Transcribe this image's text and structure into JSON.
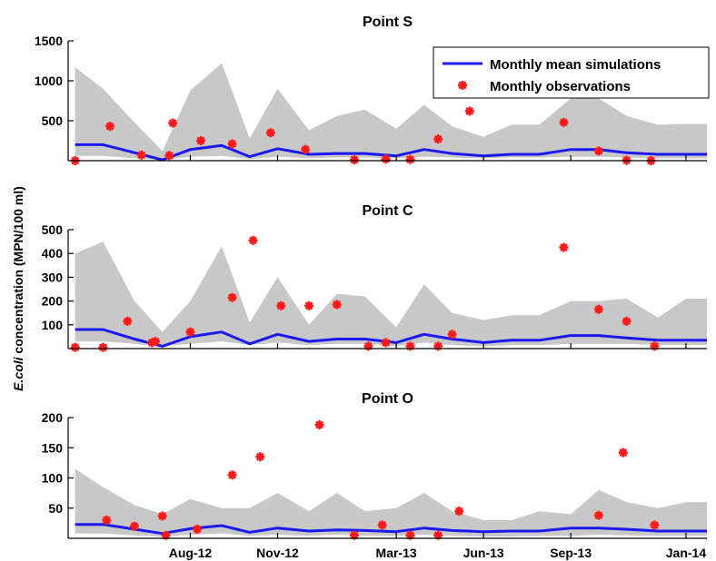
{
  "ylabel_italic": "E.coli",
  "ylabel_rest": " concentration (MPN/100 ml)",
  "legend": {
    "sim_label": "Monthly mean simulations",
    "obs_label": "Monthly observations"
  },
  "colors": {
    "band": "#c8c8c8",
    "line": "#1a1aee",
    "marker": "#ff1a1a"
  },
  "chart_data": [
    {
      "type": "line",
      "title": "Point S",
      "x_ticks": [
        {
          "x": 2012.58,
          "label": "Aug-12"
        },
        {
          "x": 2012.83,
          "label": "Nov-12"
        },
        {
          "x": 2013.17,
          "label": "Mar-13"
        },
        {
          "x": 2013.42,
          "label": "Jun-13"
        },
        {
          "x": 2013.67,
          "label": "Sep-13"
        },
        {
          "x": 2014.0,
          "label": "Jan-14"
        }
      ],
      "xlim": [
        2012.23,
        2014.06
      ],
      "ylim": [
        0,
        1500
      ],
      "y_ticks": [
        500,
        1000,
        1500
      ],
      "band": {
        "x": [
          2012.25,
          2012.33,
          2012.42,
          2012.5,
          2012.58,
          2012.67,
          2012.75,
          2012.83,
          2012.92,
          2013.0,
          2013.08,
          2013.17,
          2013.25,
          2013.33,
          2013.42,
          2013.5,
          2013.58,
          2013.67,
          2013.75,
          2013.83,
          2013.92,
          2014.0,
          2014.08
        ],
        "upper": [
          1170,
          900,
          480,
          120,
          880,
          1220,
          280,
          900,
          380,
          560,
          640,
          400,
          700,
          430,
          300,
          450,
          450,
          780,
          780,
          560,
          450,
          460,
          460
        ],
        "lower": [
          60,
          60,
          30,
          10,
          50,
          60,
          20,
          50,
          30,
          40,
          40,
          30,
          50,
          40,
          30,
          40,
          40,
          50,
          50,
          40,
          30,
          30,
          30
        ]
      },
      "series": [
        {
          "x": [
            2012.25,
            2012.33,
            2012.42,
            2012.5,
            2012.58,
            2012.67,
            2012.75,
            2012.83,
            2012.92,
            2013.0,
            2013.08,
            2013.17,
            2013.25,
            2013.33,
            2013.42,
            2013.5,
            2013.58,
            2013.67,
            2013.75,
            2013.83,
            2013.92,
            2014.0,
            2014.08
          ],
          "values": [
            200,
            200,
            100,
            10,
            140,
            190,
            50,
            150,
            80,
            90,
            90,
            60,
            140,
            90,
            60,
            80,
            80,
            140,
            140,
            100,
            80,
            80,
            80
          ]
        }
      ],
      "observations": {
        "x": [
          2012.25,
          2012.35,
          2012.44,
          2012.53,
          2012.52,
          2012.61,
          2012.7,
          2012.81,
          2012.91,
          2013.05,
          2013.14,
          2013.21,
          2013.29,
          2013.38,
          2013.65,
          2013.75,
          2013.83,
          2013.9
        ],
        "y": [
          0,
          430,
          70,
          470,
          65,
          250,
          210,
          350,
          140,
          10,
          20,
          15,
          270,
          620,
          480,
          120,
          5,
          0
        ]
      }
    },
    {
      "type": "line",
      "title": "Point C",
      "xlim": [
        2012.23,
        2014.06
      ],
      "ylim": [
        0,
        500
      ],
      "y_ticks": [
        100,
        200,
        300,
        400,
        500
      ],
      "band": {
        "x": [
          2012.25,
          2012.33,
          2012.42,
          2012.5,
          2012.58,
          2012.67,
          2012.75,
          2012.83,
          2012.92,
          2013.0,
          2013.08,
          2013.17,
          2013.25,
          2013.33,
          2013.42,
          2013.5,
          2013.58,
          2013.67,
          2013.75,
          2013.83,
          2013.92,
          2014.0,
          2014.08
        ],
        "upper": [
          400,
          450,
          200,
          70,
          200,
          430,
          110,
          300,
          100,
          230,
          220,
          90,
          270,
          150,
          120,
          140,
          140,
          200,
          200,
          210,
          130,
          210,
          210
        ],
        "lower": [
          30,
          30,
          20,
          10,
          20,
          30,
          15,
          25,
          15,
          20,
          20,
          10,
          25,
          15,
          10,
          15,
          15,
          20,
          20,
          20,
          15,
          15,
          15
        ]
      },
      "series": [
        {
          "x": [
            2012.25,
            2012.33,
            2012.42,
            2012.5,
            2012.58,
            2012.67,
            2012.75,
            2012.83,
            2012.92,
            2013.0,
            2013.08,
            2013.17,
            2013.25,
            2013.33,
            2013.42,
            2013.5,
            2013.58,
            2013.67,
            2013.75,
            2013.83,
            2013.92,
            2014.0,
            2014.08
          ],
          "values": [
            80,
            80,
            40,
            10,
            50,
            70,
            20,
            60,
            30,
            40,
            40,
            25,
            60,
            40,
            25,
            35,
            35,
            55,
            55,
            45,
            35,
            35,
            35
          ]
        }
      ],
      "observations": {
        "x": [
          2012.25,
          2012.33,
          2012.4,
          2012.48,
          2012.47,
          2012.58,
          2012.7,
          2012.76,
          2012.84,
          2012.92,
          2013.0,
          2013.09,
          2013.14,
          2013.21,
          2013.29,
          2013.33,
          2013.65,
          2013.75,
          2013.83,
          2013.91
        ],
        "y": [
          5,
          5,
          115,
          30,
          25,
          70,
          215,
          455,
          180,
          180,
          185,
          10,
          25,
          10,
          10,
          60,
          425,
          165,
          115,
          10
        ]
      }
    },
    {
      "type": "line",
      "title": "Point O",
      "xlim": [
        2012.23,
        2014.06
      ],
      "ylim": [
        0,
        200
      ],
      "y_ticks": [
        50,
        100,
        150,
        200
      ],
      "band": {
        "x": [
          2012.25,
          2012.33,
          2012.42,
          2012.5,
          2012.58,
          2012.67,
          2012.75,
          2012.83,
          2012.92,
          2013.0,
          2013.08,
          2013.17,
          2013.25,
          2013.33,
          2013.42,
          2013.5,
          2013.58,
          2013.67,
          2013.75,
          2013.83,
          2013.92,
          2014.0,
          2014.08
        ],
        "upper": [
          115,
          85,
          55,
          40,
          65,
          50,
          50,
          75,
          45,
          75,
          45,
          50,
          75,
          45,
          30,
          30,
          45,
          40,
          80,
          60,
          50,
          60,
          60
        ],
        "lower": [
          8,
          8,
          5,
          3,
          6,
          8,
          4,
          6,
          4,
          6,
          4,
          4,
          6,
          4,
          3,
          3,
          4,
          4,
          6,
          5,
          4,
          4,
          4
        ]
      },
      "series": [
        {
          "x": [
            2012.25,
            2012.33,
            2012.42,
            2012.5,
            2012.58,
            2012.67,
            2012.75,
            2012.83,
            2012.92,
            2013.0,
            2013.08,
            2013.17,
            2013.25,
            2013.33,
            2013.42,
            2013.5,
            2013.58,
            2013.67,
            2013.75,
            2013.83,
            2013.92,
            2014.0,
            2014.08
          ],
          "values": [
            23,
            23,
            15,
            8,
            16,
            21,
            10,
            17,
            12,
            14,
            13,
            11,
            17,
            13,
            11,
            12,
            12,
            17,
            17,
            15,
            12,
            12,
            12
          ]
        }
      ],
      "observations": {
        "x": [
          2012.34,
          2012.42,
          2012.5,
          2012.51,
          2012.6,
          2012.7,
          2012.78,
          2012.95,
          2013.05,
          2013.13,
          2013.21,
          2013.29,
          2013.35,
          2013.75,
          2013.82,
          2013.91
        ],
        "y": [
          30,
          20,
          37,
          5,
          15,
          105,
          135,
          188,
          5,
          22,
          5,
          5,
          45,
          38,
          142,
          22
        ]
      }
    }
  ]
}
